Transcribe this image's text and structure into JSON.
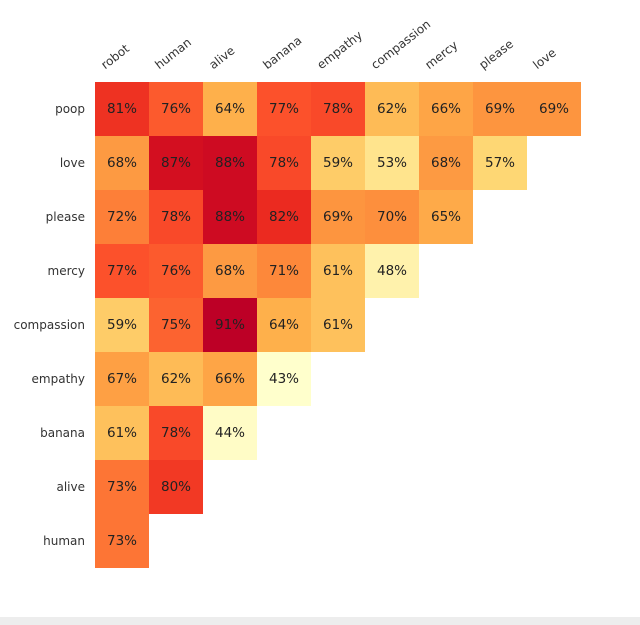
{
  "chart_data": {
    "type": "heatmap",
    "title": "",
    "columns": [
      "robot",
      "human",
      "alive",
      "banana",
      "empathy",
      "compassion",
      "mercy",
      "please",
      "love"
    ],
    "rows": [
      "poop",
      "love",
      "please",
      "mercy",
      "compassion",
      "empathy",
      "banana",
      "alive",
      "human"
    ],
    "values": [
      [
        81,
        76,
        64,
        77,
        78,
        62,
        66,
        69,
        69
      ],
      [
        68,
        87,
        88,
        78,
        59,
        53,
        68,
        57,
        null
      ],
      [
        72,
        78,
        88,
        82,
        69,
        70,
        65,
        null,
        null
      ],
      [
        77,
        76,
        68,
        71,
        61,
        48,
        null,
        null,
        null
      ],
      [
        59,
        75,
        91,
        64,
        61,
        null,
        null,
        null,
        null
      ],
      [
        67,
        62,
        66,
        43,
        null,
        null,
        null,
        null,
        null
      ],
      [
        61,
        78,
        44,
        null,
        null,
        null,
        null,
        null,
        null
      ],
      [
        73,
        80,
        null,
        null,
        null,
        null,
        null,
        null,
        null
      ],
      [
        73,
        null,
        null,
        null,
        null,
        null,
        null,
        null,
        null
      ]
    ],
    "value_suffix": "%",
    "shape": "lower-triangle",
    "grid": false,
    "legend": "none",
    "label_color": "#333333",
    "cell_text_color": "#222222",
    "colormap": {
      "name": "YlOrRd",
      "vmin": 43,
      "vmax": 91,
      "stops": [
        "#ffffcc",
        "#ffeda0",
        "#fed976",
        "#feb24c",
        "#fd8d3c",
        "#fc4e2a",
        "#e31a1c",
        "#bd0026"
      ]
    }
  }
}
